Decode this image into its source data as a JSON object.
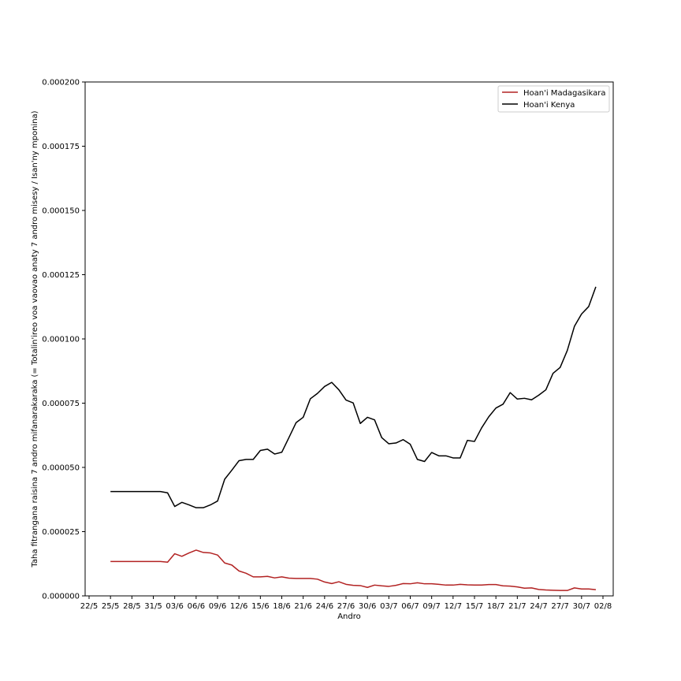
{
  "chart_data": {
    "type": "line",
    "title": "",
    "xlabel": "Andro",
    "ylabel": "Taha fitrangana raisina 7 andro mifanarakaraka (= Totalin'ireo voa vaovao anaty 7 andro misesy / Isan'ny mponina)",
    "x_tick_labels": [
      "22/5",
      "25/5",
      "28/5",
      "31/5",
      "03/6",
      "06/6",
      "09/6",
      "12/6",
      "15/6",
      "18/6",
      "21/6",
      "24/6",
      "27/6",
      "30/6",
      "03/7",
      "06/7",
      "09/7",
      "12/7",
      "15/7",
      "18/7",
      "21/7",
      "24/7",
      "27/7",
      "30/7",
      "02/8"
    ],
    "y_tick_labels": [
      "0.000000",
      "0.000025",
      "0.000050",
      "0.000075",
      "0.000100",
      "0.000125",
      "0.000150",
      "0.000175",
      "0.000200"
    ],
    "xlim": [
      "2021-05-22",
      "2021-08-02"
    ],
    "ylim": [
      0,
      0.0002
    ],
    "grid": false,
    "legend_position": "top-right",
    "series": [
      {
        "name": "Hoan'i Madagasikara",
        "color": "#b22222",
        "points": [
          [
            "2021-05-25",
            1.34e-05
          ],
          [
            "2021-05-26",
            1.34e-05
          ],
          [
            "2021-05-27",
            1.34e-05
          ],
          [
            "2021-05-28",
            1.34e-05
          ],
          [
            "2021-05-29",
            1.34e-05
          ],
          [
            "2021-05-30",
            1.34e-05
          ],
          [
            "2021-05-31",
            1.34e-05
          ],
          [
            "2021-06-01",
            1.34e-05
          ],
          [
            "2021-06-02",
            1.31e-05
          ],
          [
            "2021-06-03",
            1.64e-05
          ],
          [
            "2021-06-04",
            1.54e-05
          ],
          [
            "2021-06-05",
            1.67e-05
          ],
          [
            "2021-06-06",
            1.78e-05
          ],
          [
            "2021-06-07",
            1.69e-05
          ],
          [
            "2021-06-08",
            1.67e-05
          ],
          [
            "2021-06-09",
            1.59e-05
          ],
          [
            "2021-06-10",
            1.28e-05
          ],
          [
            "2021-06-11",
            1.2e-05
          ],
          [
            "2021-06-12",
            9.7e-06
          ],
          [
            "2021-06-13",
            8.8e-06
          ],
          [
            "2021-06-14",
            7.4e-06
          ],
          [
            "2021-06-15",
            7.4e-06
          ],
          [
            "2021-06-16",
            7.6e-06
          ],
          [
            "2021-06-17",
            7e-06
          ],
          [
            "2021-06-18",
            7.4e-06
          ],
          [
            "2021-06-19",
            6.9e-06
          ],
          [
            "2021-06-20",
            6.8e-06
          ],
          [
            "2021-06-21",
            6.8e-06
          ],
          [
            "2021-06-22",
            6.8e-06
          ],
          [
            "2021-06-23",
            6.5e-06
          ],
          [
            "2021-06-24",
            5.4e-06
          ],
          [
            "2021-06-25",
            4.8e-06
          ],
          [
            "2021-06-26",
            5.5e-06
          ],
          [
            "2021-06-27",
            4.5e-06
          ],
          [
            "2021-06-28",
            4.1e-06
          ],
          [
            "2021-06-29",
            4e-06
          ],
          [
            "2021-06-30",
            3.3e-06
          ],
          [
            "2021-07-01",
            4.2e-06
          ],
          [
            "2021-07-02",
            3.9e-06
          ],
          [
            "2021-07-03",
            3.7e-06
          ],
          [
            "2021-07-04",
            4.1e-06
          ],
          [
            "2021-07-05",
            4.8e-06
          ],
          [
            "2021-07-06",
            4.7e-06
          ],
          [
            "2021-07-07",
            5.1e-06
          ],
          [
            "2021-07-08",
            4.7e-06
          ],
          [
            "2021-07-09",
            4.7e-06
          ],
          [
            "2021-07-10",
            4.5e-06
          ],
          [
            "2021-07-11",
            4.2e-06
          ],
          [
            "2021-07-12",
            4.2e-06
          ],
          [
            "2021-07-13",
            4.5e-06
          ],
          [
            "2021-07-14",
            4.3e-06
          ],
          [
            "2021-07-15",
            4.2e-06
          ],
          [
            "2021-07-16",
            4.2e-06
          ],
          [
            "2021-07-17",
            4.4e-06
          ],
          [
            "2021-07-18",
            4.4e-06
          ],
          [
            "2021-07-19",
            3.9e-06
          ],
          [
            "2021-07-20",
            3.8e-06
          ],
          [
            "2021-07-21",
            3.5e-06
          ],
          [
            "2021-07-22",
            3e-06
          ],
          [
            "2021-07-23",
            3.1e-06
          ],
          [
            "2021-07-24",
            2.5e-06
          ],
          [
            "2021-07-25",
            2.3e-06
          ],
          [
            "2021-07-26",
            2.2e-06
          ],
          [
            "2021-07-27",
            2.1e-06
          ],
          [
            "2021-07-28",
            2.1e-06
          ],
          [
            "2021-07-29",
            3.1e-06
          ],
          [
            "2021-07-30",
            2.7e-06
          ],
          [
            "2021-07-31",
            2.7e-06
          ],
          [
            "2021-08-01",
            2.4e-06
          ]
        ]
      },
      {
        "name": "Hoan'i Kenya",
        "color": "#000000",
        "points": [
          [
            "2021-05-25",
            4.06e-05
          ],
          [
            "2021-05-26",
            4.06e-05
          ],
          [
            "2021-05-27",
            4.06e-05
          ],
          [
            "2021-05-28",
            4.06e-05
          ],
          [
            "2021-05-29",
            4.06e-05
          ],
          [
            "2021-05-30",
            4.06e-05
          ],
          [
            "2021-05-31",
            4.06e-05
          ],
          [
            "2021-06-01",
            4.06e-05
          ],
          [
            "2021-06-02",
            4.01e-05
          ],
          [
            "2021-06-03",
            3.48e-05
          ],
          [
            "2021-06-04",
            3.64e-05
          ],
          [
            "2021-06-05",
            3.54e-05
          ],
          [
            "2021-06-06",
            3.43e-05
          ],
          [
            "2021-06-07",
            3.43e-05
          ],
          [
            "2021-06-08",
            3.54e-05
          ],
          [
            "2021-06-09",
            3.69e-05
          ],
          [
            "2021-06-10",
            4.54e-05
          ],
          [
            "2021-06-11",
            4.89e-05
          ],
          [
            "2021-06-12",
            5.26e-05
          ],
          [
            "2021-06-13",
            5.31e-05
          ],
          [
            "2021-06-14",
            5.31e-05
          ],
          [
            "2021-06-15",
            5.66e-05
          ],
          [
            "2021-06-16",
            5.71e-05
          ],
          [
            "2021-06-17",
            5.52e-05
          ],
          [
            "2021-06-18",
            5.59e-05
          ],
          [
            "2021-06-19",
            6.16e-05
          ],
          [
            "2021-06-20",
            6.74e-05
          ],
          [
            "2021-06-21",
            6.95e-05
          ],
          [
            "2021-06-22",
            7.67e-05
          ],
          [
            "2021-06-23",
            7.88e-05
          ],
          [
            "2021-06-24",
            8.15e-05
          ],
          [
            "2021-06-25",
            8.31e-05
          ],
          [
            "2021-06-26",
            8.02e-05
          ],
          [
            "2021-06-27",
            7.62e-05
          ],
          [
            "2021-06-28",
            7.51e-05
          ],
          [
            "2021-06-29",
            6.71e-05
          ],
          [
            "2021-06-30",
            6.95e-05
          ],
          [
            "2021-07-01",
            6.85e-05
          ],
          [
            "2021-07-02",
            6.16e-05
          ],
          [
            "2021-07-03",
            5.92e-05
          ],
          [
            "2021-07-04",
            5.95e-05
          ],
          [
            "2021-07-05",
            6.08e-05
          ],
          [
            "2021-07-06",
            5.9e-05
          ],
          [
            "2021-07-07",
            5.31e-05
          ],
          [
            "2021-07-08",
            5.23e-05
          ],
          [
            "2021-07-09",
            5.58e-05
          ],
          [
            "2021-07-10",
            5.45e-05
          ],
          [
            "2021-07-11",
            5.45e-05
          ],
          [
            "2021-07-12",
            5.37e-05
          ],
          [
            "2021-07-13",
            5.37e-05
          ],
          [
            "2021-07-14",
            6.05e-05
          ],
          [
            "2021-07-15",
            6.01e-05
          ],
          [
            "2021-07-16",
            6.54e-05
          ],
          [
            "2021-07-17",
            6.97e-05
          ],
          [
            "2021-07-18",
            7.31e-05
          ],
          [
            "2021-07-19",
            7.46e-05
          ],
          [
            "2021-07-20",
            7.91e-05
          ],
          [
            "2021-07-21",
            7.66e-05
          ],
          [
            "2021-07-22",
            7.69e-05
          ],
          [
            "2021-07-23",
            7.63e-05
          ],
          [
            "2021-07-24",
            7.81e-05
          ],
          [
            "2021-07-25",
            8.02e-05
          ],
          [
            "2021-07-26",
            8.66e-05
          ],
          [
            "2021-07-27",
            8.89e-05
          ],
          [
            "2021-07-28",
            9.55e-05
          ],
          [
            "2021-07-29",
            0.0001049
          ],
          [
            "2021-07-30",
            0.0001097
          ],
          [
            "2021-07-31",
            0.0001126
          ],
          [
            "2021-08-01",
            0.0001203
          ]
        ]
      }
    ]
  }
}
